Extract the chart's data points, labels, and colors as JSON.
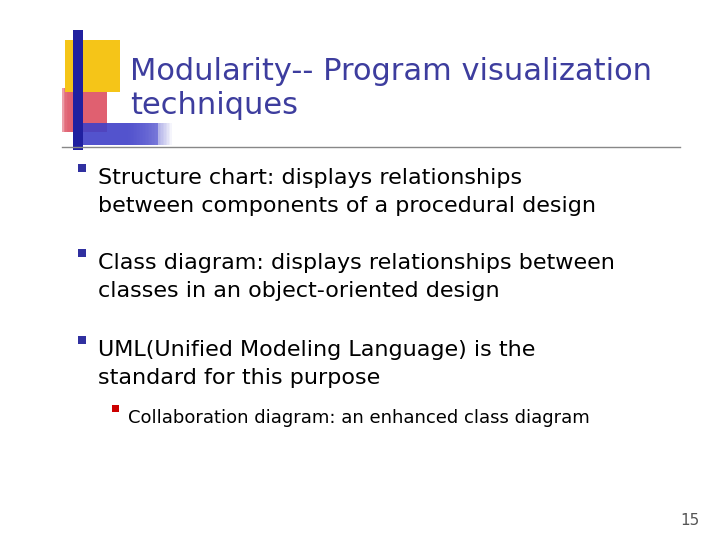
{
  "title_line1": "Modularity-- Program visualization",
  "title_line2": "techniques",
  "title_color": "#3d3d9e",
  "background_color": "#ffffff",
  "slide_number": "15",
  "bullet_color": "#000000",
  "sub_bullet_color": "#cc0000",
  "bullet_square_color": "#3030a0",
  "bullets": [
    "Structure chart: displays relationships\nbetween components of a procedural design",
    "Class diagram: displays relationships between\nclasses in an object-oriented design",
    "UML(Unified Modeling Language) is the\nstandard for this purpose"
  ],
  "sub_bullets": [
    "Collaboration diagram: an enhanced class diagram"
  ],
  "header_line_color": "#888888",
  "accent_yellow": "#f5c518",
  "accent_red": "#e06070",
  "accent_blue_dark": "#2020a0",
  "accent_blue_light": "#4444cc",
  "title_fontsize": 22,
  "bullet_fontsize": 16,
  "sub_bullet_fontsize": 13
}
